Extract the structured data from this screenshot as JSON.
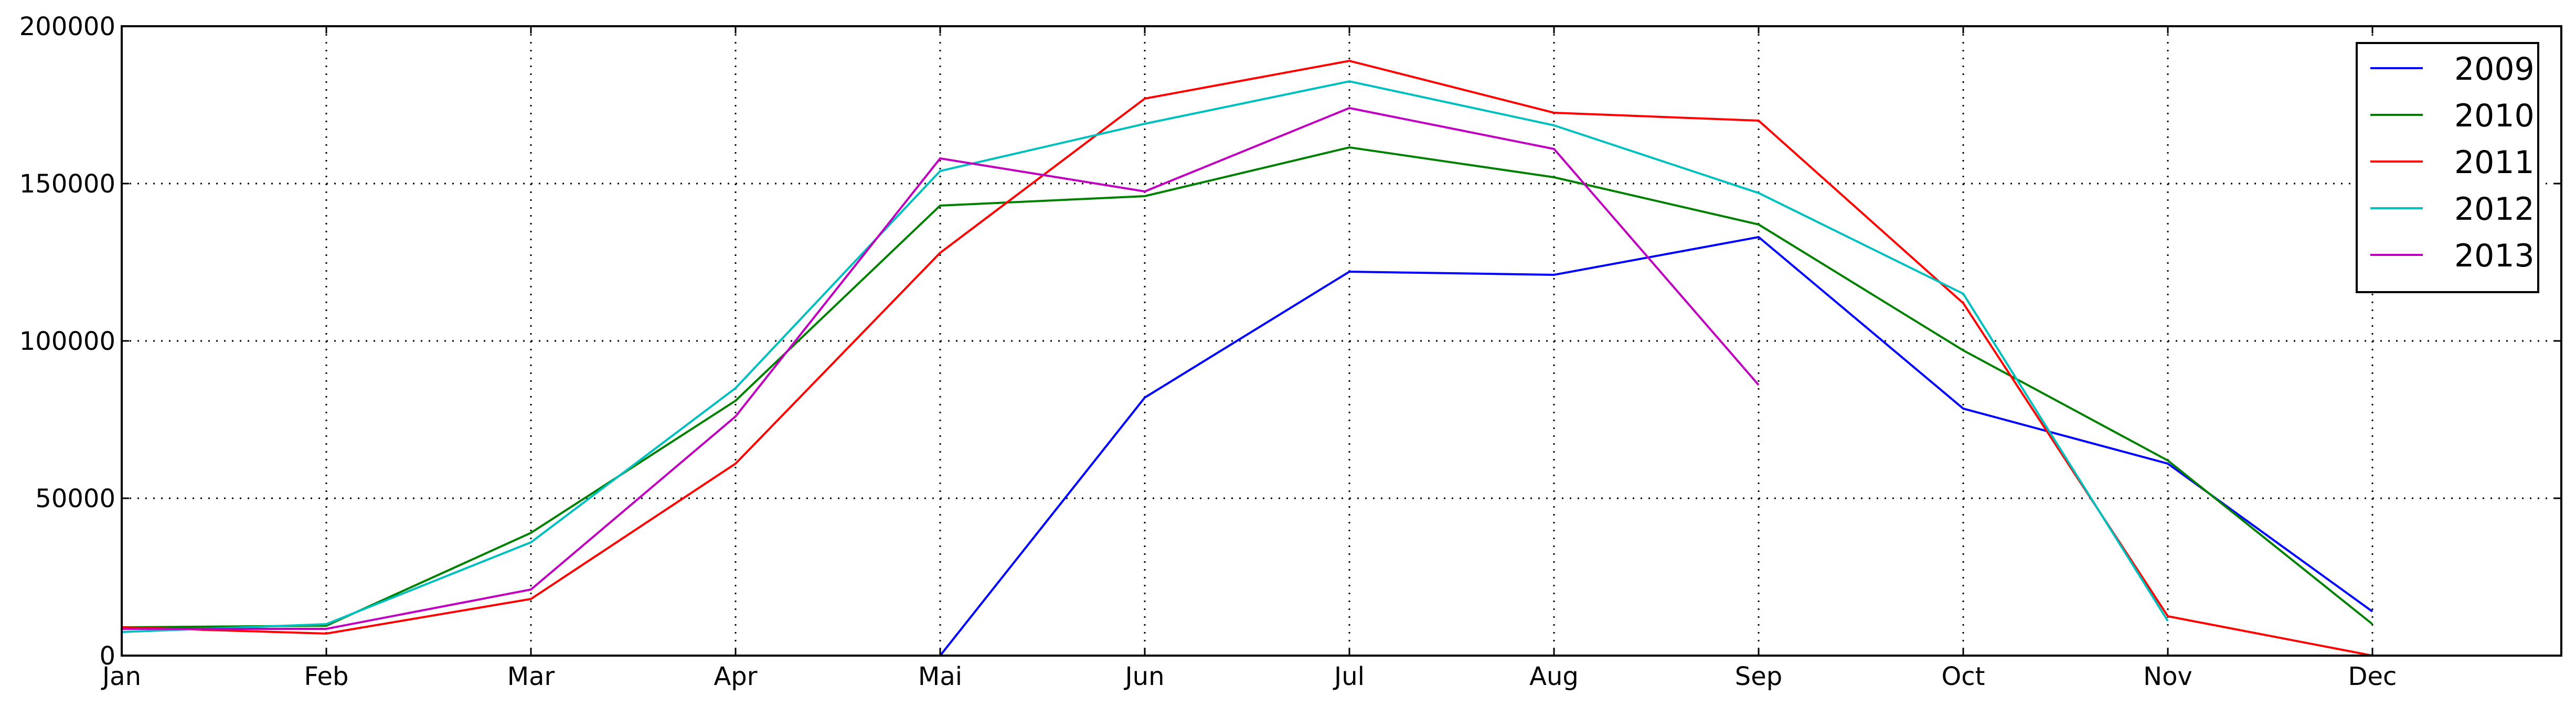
{
  "chart_data": {
    "type": "line",
    "categories": [
      "Jan",
      "Feb",
      "Mar",
      "Apr",
      "Mai",
      "Jun",
      "Jul",
      "Aug",
      "Sep",
      "Oct",
      "Nov",
      "Dec"
    ],
    "ylim": [
      0,
      200000
    ],
    "yticks": [
      "0",
      "50000",
      "100000",
      "150000",
      "200000"
    ],
    "grid": true,
    "legend_position": "top-right",
    "series": [
      {
        "name": "2009",
        "color": "#0000ff",
        "values": [
          null,
          null,
          null,
          null,
          0,
          82000,
          122000,
          121000,
          133000,
          78500,
          61000,
          14000
        ]
      },
      {
        "name": "2010",
        "color": "#008000",
        "values": [
          9000,
          9500,
          39000,
          81000,
          143000,
          146000,
          161500,
          152000,
          137000,
          97000,
          62000,
          10000
        ]
      },
      {
        "name": "2011",
        "color": "#ff0000",
        "values": [
          9000,
          7000,
          18000,
          61000,
          128000,
          177000,
          189000,
          172500,
          170000,
          112000,
          12500,
          0
        ]
      },
      {
        "name": "2012",
        "color": "#00bfbf",
        "values": [
          7500,
          10000,
          36000,
          85000,
          154000,
          169000,
          182500,
          168500,
          147000,
          115000,
          11000,
          null
        ]
      },
      {
        "name": "2013",
        "color": "#bf00bf",
        "values": [
          8500,
          8500,
          21000,
          76000,
          158000,
          147500,
          174000,
          161000,
          86000,
          null,
          null,
          null
        ]
      }
    ]
  }
}
